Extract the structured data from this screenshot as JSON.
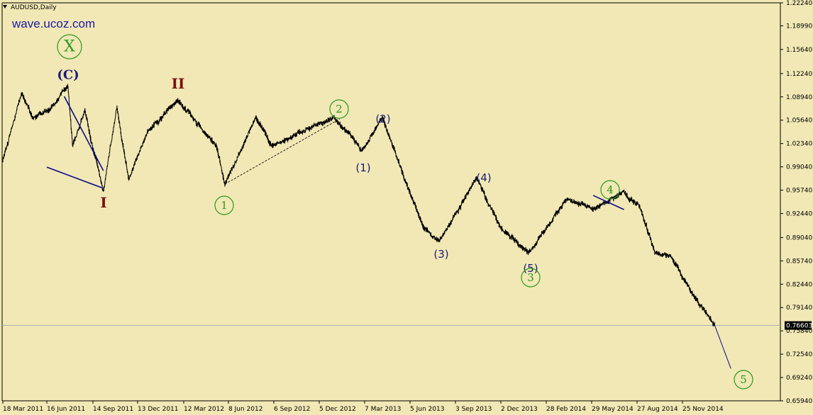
{
  "chart_title": "AUDUSD,Daily",
  "watermark": "wave.ucoz.com",
  "current_price_label": "0.76603",
  "chart_data": {
    "type": "line",
    "symbol": "AUDUSD",
    "timeframe": "Daily",
    "y_ticks": [
      "1.22240",
      "1.18990",
      "1.15640",
      "1.12240",
      "1.08940",
      "1.05640",
      "1.02340",
      "0.99040",
      "0.95740",
      "0.92440",
      "0.89040",
      "0.85740",
      "0.82440",
      "0.79140",
      "0.75840",
      "0.72540",
      "0.69240",
      "0.65940"
    ],
    "x_ticks": [
      "18 Mar 2011",
      "16 Jun 2011",
      "14 Sep 2011",
      "13 Dec 2011",
      "12 Mar 2012",
      "8 Jun 2012",
      "6 Sep 2012",
      "5 Dec 2012",
      "7 Mar 2013",
      "5 Jun 2013",
      "3 Sep 2013",
      "2 Dec 2013",
      "28 Feb 2014",
      "29 May 2014",
      "27 Aug 2014",
      "25 Nov 2014"
    ],
    "ylim": [
      0.6594,
      1.2224
    ],
    "current_price": 0.76603,
    "grid": false,
    "price_path": [
      {
        "date": "18 Mar 2011",
        "price": 1.0
      },
      {
        "date": "25 Apr 2011",
        "price": 1.095
      },
      {
        "date": "18 May 2011",
        "price": 1.06
      },
      {
        "date": "20 Jun 2011",
        "price": 1.07
      },
      {
        "date": "27 Jul 2011",
        "price": 1.105
      },
      {
        "date": "5 Aug 2011",
        "price": 1.02
      },
      {
        "date": "29 Aug 2011",
        "price": 1.07
      },
      {
        "date": "5 Oct 2011",
        "price": 0.955
      },
      {
        "date": "1 Nov 2011",
        "price": 1.075
      },
      {
        "date": "25 Nov 2011",
        "price": 0.972
      },
      {
        "date": "1 Jan 2012",
        "price": 1.04
      },
      {
        "date": "29 Feb 2012",
        "price": 1.085
      },
      {
        "date": "15 May 2012",
        "price": 1.02
      },
      {
        "date": "1 Jun 2012",
        "price": 0.966
      },
      {
        "date": "1 Aug 2012",
        "price": 1.06
      },
      {
        "date": "1 Sep 2012",
        "price": 1.02
      },
      {
        "date": "3 Jan 2013",
        "price": 1.06
      },
      {
        "date": "1 Feb 2013",
        "price": 1.04
      },
      {
        "date": "1 Mar 2013",
        "price": 1.013
      },
      {
        "date": "11 Apr 2013",
        "price": 1.06
      },
      {
        "date": "1 Jun 2013",
        "price": 0.96
      },
      {
        "date": "1 Jul 2013",
        "price": 0.905
      },
      {
        "date": "1 Aug 2013",
        "price": 0.885
      },
      {
        "date": "15 Oct 2013",
        "price": 0.975
      },
      {
        "date": "1 Dec 2013",
        "price": 0.905
      },
      {
        "date": "24 Jan 2014",
        "price": 0.869
      },
      {
        "date": "1 Mar 2014",
        "price": 0.905
      },
      {
        "date": "10 Apr 2014",
        "price": 0.945
      },
      {
        "date": "1 Jun 2014",
        "price": 0.93
      },
      {
        "date": "30 Jul 2014",
        "price": 0.955
      },
      {
        "date": "1 Sep 2014",
        "price": 0.935
      },
      {
        "date": "1 Oct 2014",
        "price": 0.87
      },
      {
        "date": "1 Nov 2014",
        "price": 0.865
      },
      {
        "date": "15 Dec 2014",
        "price": 0.81
      },
      {
        "date": "15 Jan 2015",
        "price": 0.78
      },
      {
        "date": "28 Jan 2015",
        "price": 0.766
      }
    ],
    "projection": [
      {
        "date": "28 Jan 2015",
        "price": 0.766
      },
      {
        "date": "1 Mar 2015",
        "price": 0.705
      }
    ],
    "trendlines": [
      {
        "style": "dashed",
        "from": {
          "date": "1 Jun 2012",
          "price": 0.966
        },
        "to": {
          "date": "15 Jan 2013",
          "price": 1.058
        }
      },
      {
        "style": "solid",
        "from": {
          "date": "16 Jun 2011",
          "price": 0.99
        },
        "to": {
          "date": "5 Oct 2011",
          "price": 0.96
        }
      },
      {
        "style": "solid",
        "from": {
          "date": "20 Jul 2011",
          "price": 1.09
        },
        "to": {
          "date": "5 Oct 2011",
          "price": 0.985
        }
      },
      {
        "style": "solid",
        "from": {
          "date": "1 Jun 2014",
          "price": 0.95
        },
        "to": {
          "date": "1 Aug 2014",
          "price": 0.93
        }
      }
    ],
    "wave_labels": [
      {
        "text": "X",
        "circled": true,
        "color": "#2a9a1c"
      },
      {
        "text": "(C)",
        "circled": false,
        "color": "#1b1b7a"
      },
      {
        "text": "I",
        "circled": false,
        "color": "#7a1010"
      },
      {
        "text": "II",
        "circled": false,
        "color": "#7a1010"
      },
      {
        "text": "1",
        "circled": true,
        "color": "#2a9a1c"
      },
      {
        "text": "2",
        "circled": true,
        "color": "#2a9a1c"
      },
      {
        "text": "(1)",
        "circled": false,
        "color": "#1b1b7a"
      },
      {
        "text": "(2)",
        "circled": false,
        "color": "#1b1b7a"
      },
      {
        "text": "(3)",
        "circled": false,
        "color": "#1b1b7a"
      },
      {
        "text": "(4)",
        "circled": false,
        "color": "#1b1b7a"
      },
      {
        "text": "(5)",
        "circled": false,
        "color": "#1b1b7a"
      },
      {
        "text": "3",
        "circled": true,
        "color": "#2a9a1c"
      },
      {
        "text": "4",
        "circled": true,
        "color": "#2a9a1c"
      },
      {
        "text": "5",
        "circled": true,
        "color": "#2a9a1c"
      }
    ],
    "colors": {
      "background": "#f1e8b5",
      "price_line": "#000000",
      "trendline": "#0b0b8a",
      "circled_wave": "#2a9a1c",
      "navy_wave": "#1b1b7a",
      "primary_wave": "#7a1010",
      "watermark": "#1a1aa8"
    }
  }
}
